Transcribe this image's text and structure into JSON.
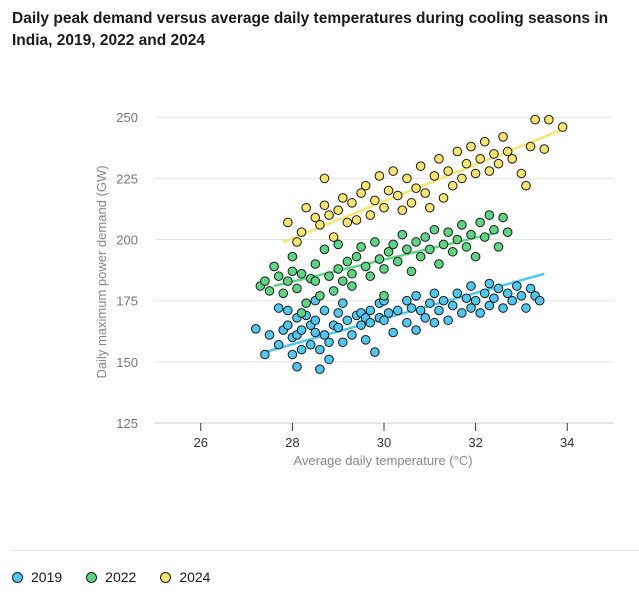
{
  "chart_data": {
    "type": "scatter",
    "title": "Daily peak demand versus average daily temperatures during cooling seasons in India, 2019, 2022 and 2024",
    "xlabel": "Average daily temperature (°C)",
    "ylabel": "Daily maximum power demand (GW)",
    "xlim": [
      25,
      35
    ],
    "ylim": [
      125,
      255
    ],
    "xticks": [
      "26",
      "28",
      "30",
      "32",
      "34"
    ],
    "yticks": [
      "125",
      "150",
      "175",
      "200",
      "225",
      "250"
    ],
    "xtick_values": [
      26,
      28,
      30,
      32,
      34
    ],
    "ytick_values": [
      125,
      150,
      175,
      200,
      225,
      250
    ],
    "grid": true,
    "legend_position": "bottom-left",
    "series": [
      {
        "name": "2019",
        "color": "#4dc8f0",
        "trend": [
          [
            27.3,
            153.5
          ],
          [
            33.5,
            186
          ]
        ],
        "points": [
          [
            27.2,
            163.5
          ],
          [
            27.4,
            153
          ],
          [
            27.5,
            161
          ],
          [
            27.7,
            157
          ],
          [
            27.7,
            172
          ],
          [
            27.8,
            163
          ],
          [
            27.9,
            165
          ],
          [
            27.9,
            171
          ],
          [
            28.0,
            153
          ],
          [
            28.0,
            160
          ],
          [
            28.1,
            148
          ],
          [
            28.1,
            161
          ],
          [
            28.1,
            168
          ],
          [
            28.2,
            155
          ],
          [
            28.2,
            163
          ],
          [
            28.3,
            169
          ],
          [
            28.4,
            157
          ],
          [
            28.4,
            165
          ],
          [
            28.5,
            162
          ],
          [
            28.5,
            167
          ],
          [
            28.5,
            175
          ],
          [
            28.6,
            147
          ],
          [
            28.6,
            155
          ],
          [
            28.7,
            161
          ],
          [
            28.7,
            171
          ],
          [
            28.8,
            151
          ],
          [
            28.8,
            158
          ],
          [
            28.9,
            165
          ],
          [
            29.0,
            164
          ],
          [
            29.0,
            170
          ],
          [
            29.1,
            158
          ],
          [
            29.1,
            174
          ],
          [
            29.2,
            167
          ],
          [
            29.3,
            161
          ],
          [
            29.4,
            169
          ],
          [
            29.5,
            165
          ],
          [
            29.5,
            170
          ],
          [
            29.6,
            168
          ],
          [
            29.6,
            159
          ],
          [
            29.7,
            166
          ],
          [
            29.7,
            171
          ],
          [
            29.8,
            154
          ],
          [
            29.9,
            168
          ],
          [
            29.9,
            174
          ],
          [
            30.0,
            167
          ],
          [
            30.0,
            175
          ],
          [
            30.1,
            170
          ],
          [
            30.2,
            162
          ],
          [
            30.3,
            171
          ],
          [
            30.5,
            166
          ],
          [
            30.5,
            175
          ],
          [
            30.6,
            172
          ],
          [
            30.7,
            163
          ],
          [
            30.7,
            177
          ],
          [
            30.8,
            171
          ],
          [
            30.9,
            168
          ],
          [
            31.0,
            174
          ],
          [
            31.1,
            166
          ],
          [
            31.1,
            178
          ],
          [
            31.2,
            171
          ],
          [
            31.3,
            175
          ],
          [
            31.4,
            167
          ],
          [
            31.5,
            173
          ],
          [
            31.6,
            178
          ],
          [
            31.7,
            170
          ],
          [
            31.8,
            176
          ],
          [
            31.9,
            172
          ],
          [
            31.9,
            181
          ],
          [
            32.0,
            175
          ],
          [
            32.1,
            170
          ],
          [
            32.2,
            178
          ],
          [
            32.3,
            173
          ],
          [
            32.3,
            182
          ],
          [
            32.4,
            176
          ],
          [
            32.5,
            180
          ],
          [
            32.6,
            172
          ],
          [
            32.7,
            178
          ],
          [
            32.8,
            175
          ],
          [
            32.9,
            181
          ],
          [
            33.0,
            177
          ],
          [
            33.1,
            172
          ],
          [
            33.2,
            180
          ],
          [
            33.3,
            177
          ],
          [
            33.4,
            175
          ]
        ]
      },
      {
        "name": "2022",
        "color": "#5bd683",
        "trend": [
          [
            27.6,
            181
          ],
          [
            32.5,
            203
          ]
        ],
        "points": [
          [
            27.3,
            181
          ],
          [
            27.4,
            183
          ],
          [
            27.5,
            179
          ],
          [
            27.6,
            189
          ],
          [
            27.7,
            185
          ],
          [
            27.8,
            178
          ],
          [
            27.9,
            183
          ],
          [
            28.0,
            187
          ],
          [
            28.0,
            193
          ],
          [
            28.1,
            180
          ],
          [
            28.2,
            186
          ],
          [
            28.2,
            170
          ],
          [
            28.3,
            174
          ],
          [
            28.4,
            184
          ],
          [
            28.5,
            190
          ],
          [
            28.5,
            183
          ],
          [
            28.6,
            177
          ],
          [
            28.7,
            196
          ],
          [
            28.8,
            185
          ],
          [
            28.9,
            179
          ],
          [
            29.0,
            188
          ],
          [
            29.0,
            198
          ],
          [
            29.1,
            183
          ],
          [
            29.2,
            191
          ],
          [
            29.3,
            186
          ],
          [
            29.3,
            181
          ],
          [
            29.4,
            193
          ],
          [
            29.5,
            197
          ],
          [
            29.6,
            189
          ],
          [
            29.7,
            185
          ],
          [
            29.8,
            199
          ],
          [
            29.9,
            192
          ],
          [
            30.0,
            188
          ],
          [
            30.0,
            177
          ],
          [
            30.1,
            195
          ],
          [
            30.2,
            198
          ],
          [
            30.3,
            191
          ],
          [
            30.4,
            202
          ],
          [
            30.5,
            196
          ],
          [
            30.6,
            187
          ],
          [
            30.7,
            199
          ],
          [
            30.8,
            193
          ],
          [
            30.9,
            201
          ],
          [
            31.0,
            196
          ],
          [
            31.1,
            204
          ],
          [
            31.2,
            190
          ],
          [
            31.3,
            198
          ],
          [
            31.4,
            203
          ],
          [
            31.5,
            195
          ],
          [
            31.6,
            200
          ],
          [
            31.7,
            206
          ],
          [
            31.8,
            197
          ],
          [
            31.9,
            202
          ],
          [
            32.0,
            193
          ],
          [
            32.1,
            207
          ],
          [
            32.2,
            201
          ],
          [
            32.3,
            210
          ],
          [
            32.4,
            204
          ],
          [
            32.5,
            197
          ],
          [
            32.6,
            209
          ],
          [
            32.7,
            203
          ]
        ]
      },
      {
        "name": "2024",
        "color": "#f7e66b",
        "trend": [
          [
            27.8,
            199
          ],
          [
            33.9,
            245
          ]
        ],
        "points": [
          [
            27.9,
            207
          ],
          [
            28.1,
            199
          ],
          [
            28.2,
            203
          ],
          [
            28.3,
            213
          ],
          [
            28.5,
            209
          ],
          [
            28.6,
            206
          ],
          [
            28.7,
            214
          ],
          [
            28.7,
            225
          ],
          [
            28.8,
            210
          ],
          [
            28.9,
            201
          ],
          [
            29.0,
            212
          ],
          [
            29.1,
            217
          ],
          [
            29.2,
            207
          ],
          [
            29.3,
            215
          ],
          [
            29.4,
            208
          ],
          [
            29.5,
            219
          ],
          [
            29.6,
            222
          ],
          [
            29.7,
            210
          ],
          [
            29.8,
            216
          ],
          [
            29.9,
            226
          ],
          [
            30.0,
            213
          ],
          [
            30.1,
            220
          ],
          [
            30.2,
            228
          ],
          [
            30.3,
            218
          ],
          [
            30.4,
            212
          ],
          [
            30.5,
            225
          ],
          [
            30.6,
            215
          ],
          [
            30.7,
            221
          ],
          [
            30.8,
            230
          ],
          [
            30.9,
            219
          ],
          [
            31.0,
            213
          ],
          [
            31.1,
            226
          ],
          [
            31.2,
            233
          ],
          [
            31.3,
            217
          ],
          [
            31.4,
            228
          ],
          [
            31.5,
            222
          ],
          [
            31.6,
            236
          ],
          [
            31.7,
            225
          ],
          [
            31.8,
            231
          ],
          [
            31.9,
            238
          ],
          [
            32.0,
            227
          ],
          [
            32.1,
            233
          ],
          [
            32.2,
            240
          ],
          [
            32.3,
            228
          ],
          [
            32.4,
            235
          ],
          [
            32.5,
            231
          ],
          [
            32.6,
            242
          ],
          [
            32.7,
            236
          ],
          [
            32.8,
            233
          ],
          [
            33.0,
            227
          ],
          [
            33.1,
            222
          ],
          [
            33.2,
            238
          ],
          [
            33.3,
            249
          ],
          [
            33.5,
            237
          ],
          [
            33.6,
            249
          ],
          [
            33.9,
            246
          ]
        ]
      }
    ]
  }
}
